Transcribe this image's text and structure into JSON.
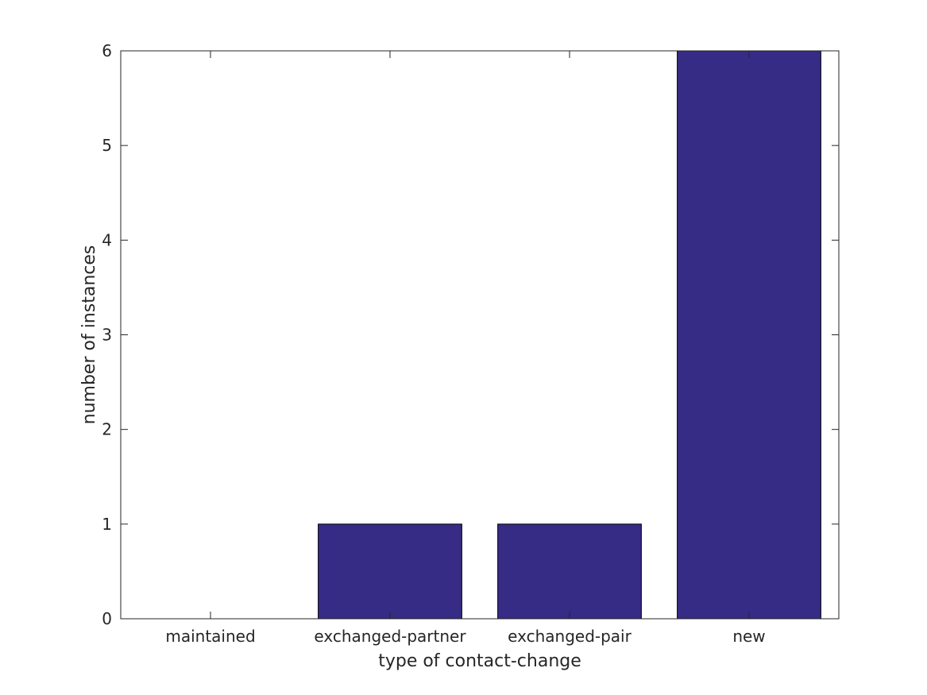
{
  "chart_data": {
    "type": "bar",
    "title": "",
    "xlabel": "type of contact-change",
    "ylabel": "number of instances",
    "categories": [
      "maintained",
      "exchanged-partner",
      "exchanged-pair",
      "new"
    ],
    "values": [
      0,
      1,
      1,
      6
    ],
    "ylim": [
      0,
      6
    ],
    "yticks": [
      0,
      1,
      2,
      3,
      4,
      5,
      6
    ],
    "grid": false,
    "legend": "none",
    "bar_color": "#362B85",
    "bar_edge_color": "#000000"
  }
}
